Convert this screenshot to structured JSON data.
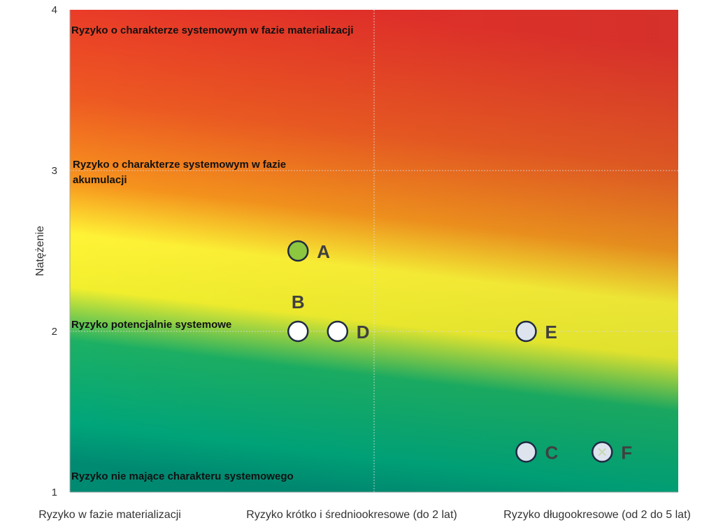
{
  "chart_data": {
    "type": "scatter",
    "ylabel": "Natężenie",
    "ylim": [
      1,
      4
    ],
    "yticks": [
      1,
      2,
      3,
      4
    ],
    "grid": true,
    "categories": [
      "Ryzyko w fazie materializacji",
      "Ryzyko krótko i średniookresowe (do 2 lat)",
      "Ryzyko długookresowe (od 2 do 5 lat)"
    ],
    "zones": [
      {
        "y": 4,
        "text": [
          "Ryzyko o charakterze systemowym w fazie materializacji"
        ]
      },
      {
        "y": 3,
        "text": [
          "Ryzyko o charakterze systemowym w fazie",
          "akumulacji"
        ]
      },
      {
        "y": 2,
        "text": [
          "Ryzyko potencjalnie systemowe"
        ]
      },
      {
        "y": 1,
        "text": [
          "Ryzyko nie mające charakteru systemowego"
        ]
      }
    ],
    "points": [
      {
        "label": "A",
        "x": 1.75,
        "y": 2.5,
        "fill": "#8dc63f",
        "label_pos": "right"
      },
      {
        "label": "B",
        "x": 1.75,
        "y": 2.0,
        "fill": "#ffffff",
        "label_pos": "above"
      },
      {
        "label": "D",
        "x": 1.88,
        "y": 2.0,
        "fill": "#ffffff",
        "label_pos": "right"
      },
      {
        "label": "E",
        "x": 2.5,
        "y": 2.0,
        "fill": "#dde4ee",
        "label_pos": "right"
      },
      {
        "label": "C",
        "x": 2.5,
        "y": 1.25,
        "fill": "#dde4ee",
        "label_pos": "right"
      },
      {
        "label": "F",
        "x": 2.75,
        "y": 1.25,
        "fill": "#dde4ee",
        "label_pos": "right",
        "marker": "x"
      }
    ],
    "gradient_colors": [
      "#e8302a",
      "#f26522",
      "#f7941d",
      "#fff200",
      "#00a651",
      "#00806a"
    ]
  }
}
